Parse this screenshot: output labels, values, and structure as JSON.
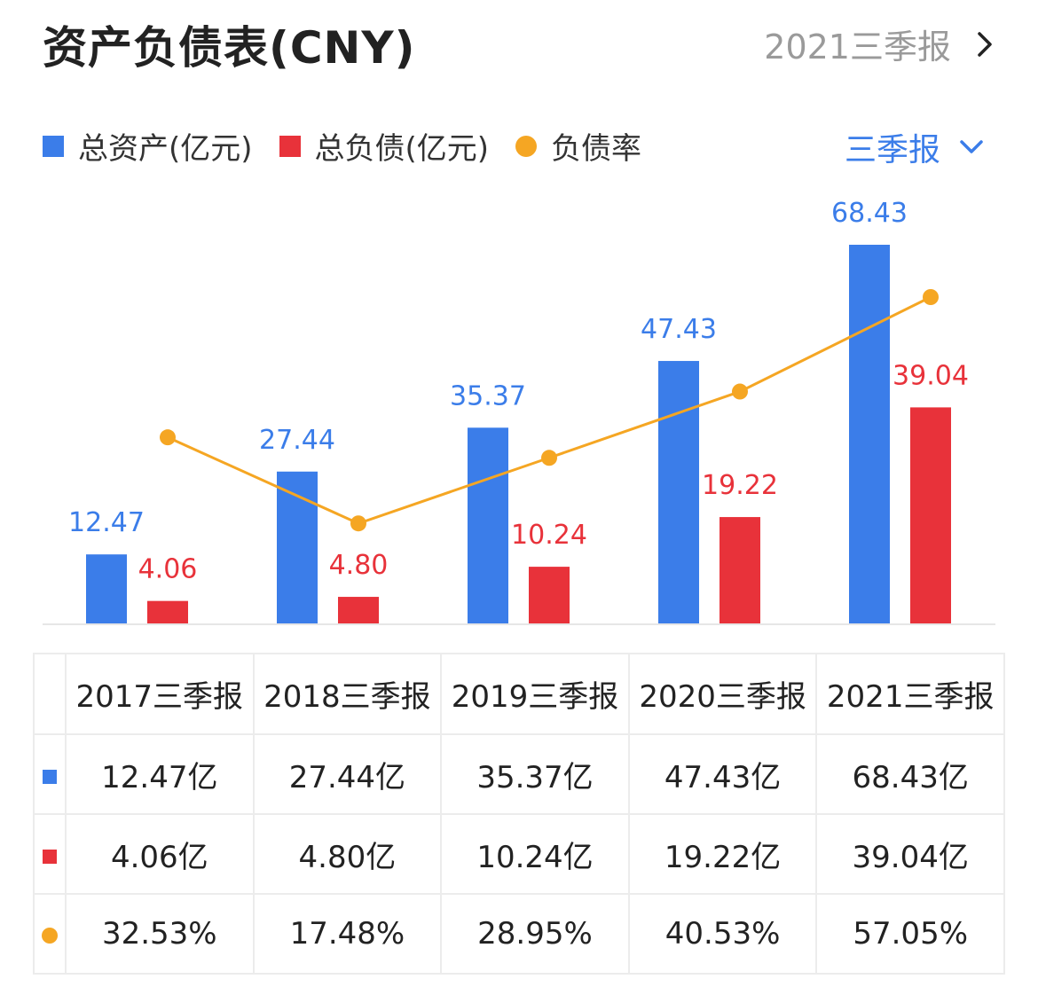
{
  "header": {
    "title": "资产负债表(CNY)",
    "report_label": "2021三季报"
  },
  "legend": [
    {
      "label": "总资产(亿元)",
      "color": "#3b7de9"
    },
    {
      "label": "总负债(亿元)",
      "color": "#e8323a"
    },
    {
      "label": "负债率",
      "color": "#f5a623"
    }
  ],
  "period_select": {
    "label": "三季报"
  },
  "chart_data": {
    "type": "bar",
    "categories": [
      "2017三季报",
      "2018三季报",
      "2019三季报",
      "2020三季报",
      "2021三季报"
    ],
    "series": [
      {
        "name": "总资产(亿元)",
        "type": "bar",
        "color": "#3b7de9",
        "values": [
          12.47,
          27.44,
          35.37,
          47.43,
          68.43
        ],
        "labels": [
          "12.47",
          "27.44",
          "35.37",
          "47.43",
          "68.43"
        ]
      },
      {
        "name": "总负债(亿元)",
        "type": "bar",
        "color": "#e8323a",
        "values": [
          4.06,
          4.8,
          10.24,
          19.22,
          39.04
        ],
        "labels": [
          "4.06",
          "4.80",
          "10.24",
          "19.22",
          "39.04"
        ]
      },
      {
        "name": "负债率",
        "type": "line",
        "color": "#f5a623",
        "values": [
          32.53,
          17.48,
          28.95,
          40.53,
          57.05
        ]
      }
    ]
  },
  "table": {
    "columns": [
      "2017三季报",
      "2018三季报",
      "2019三季报",
      "2020三季报",
      "2021三季报"
    ],
    "rows": [
      {
        "marker": "blue",
        "cells": [
          "12.47亿",
          "27.44亿",
          "35.37亿",
          "47.43亿",
          "68.43亿"
        ]
      },
      {
        "marker": "red",
        "cells": [
          "4.06亿",
          "4.80亿",
          "10.24亿",
          "19.22亿",
          "39.04亿"
        ]
      },
      {
        "marker": "dot",
        "cells": [
          "32.53%",
          "17.48%",
          "28.95%",
          "40.53%",
          "57.05%"
        ]
      }
    ]
  }
}
